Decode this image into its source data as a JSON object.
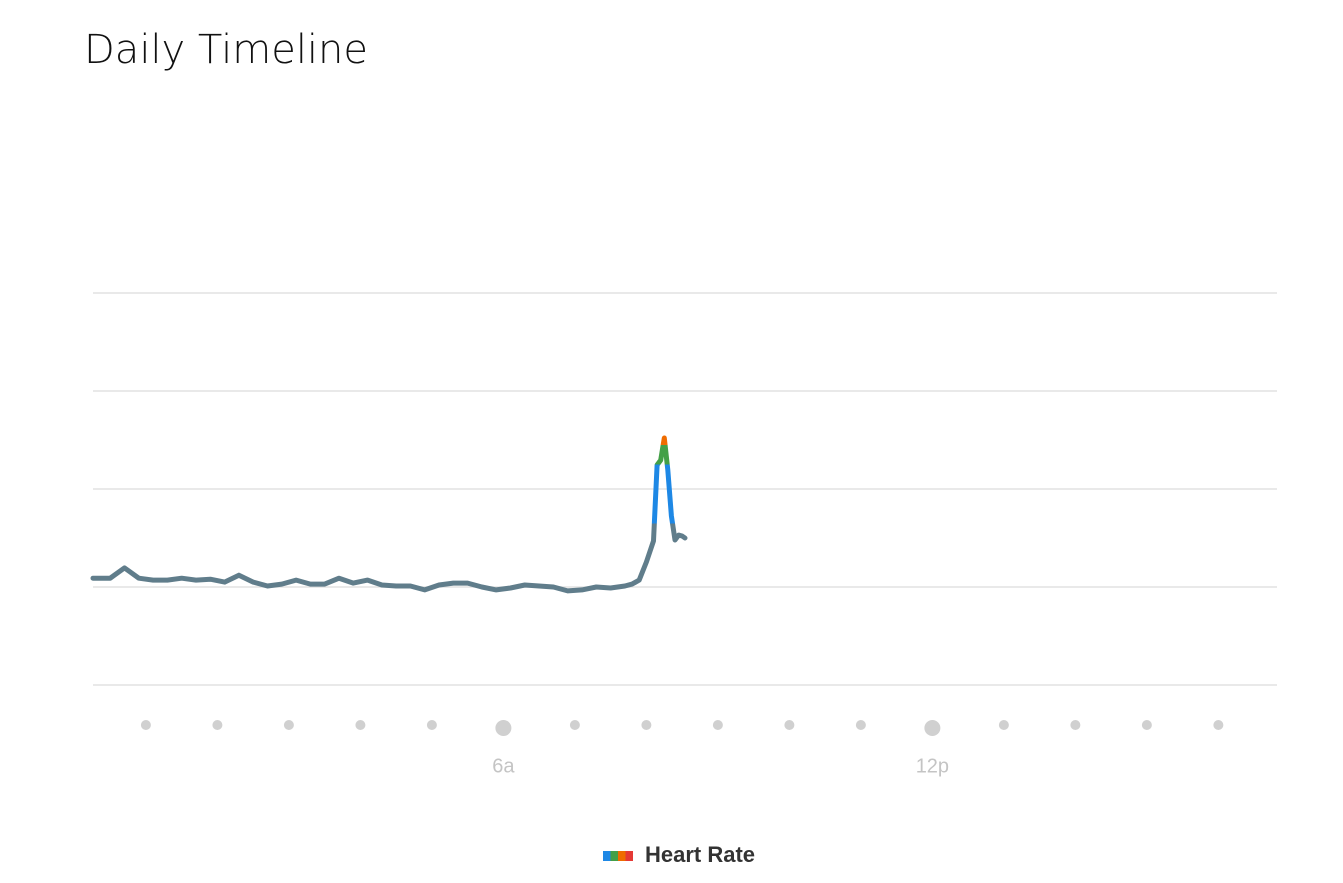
{
  "chart_data": {
    "type": "line",
    "title": "Daily Timeline",
    "xlim": [
      0.26,
      16.82
    ],
    "xticks": [
      {
        "value": 6,
        "label": "6a"
      },
      {
        "value": 12,
        "label": "12p"
      }
    ],
    "xminor": [
      1,
      2,
      3,
      4,
      5,
      7,
      8,
      9,
      10,
      11,
      13,
      14,
      15,
      16
    ],
    "ylim": [
      40,
      120
    ],
    "ygrid": [
      40,
      60,
      80,
      100,
      120
    ],
    "grid": true,
    "series": [
      {
        "name": "Heart Rate",
        "color": "#607d8b",
        "zones": [
          {
            "min": 73,
            "color": "#1e88e5"
          },
          {
            "min": 85,
            "color": "#43a047"
          },
          {
            "min": 89,
            "color": "#ef6c00"
          },
          {
            "min": 100,
            "color": "#e53935"
          }
        ],
        "x": [
          0.26,
          0.3,
          0.5,
          0.7,
          0.9,
          1.1,
          1.3,
          1.5,
          1.7,
          1.9,
          2.1,
          2.3,
          2.5,
          2.7,
          2.9,
          3.1,
          3.3,
          3.5,
          3.7,
          3.9,
          4.1,
          4.3,
          4.5,
          4.7,
          4.9,
          5.1,
          5.3,
          5.5,
          5.7,
          5.9,
          6.1,
          6.3,
          6.5,
          6.7,
          6.9,
          7.1,
          7.3,
          7.5,
          7.7,
          7.8,
          7.9,
          8.0,
          8.1,
          8.15,
          8.2,
          8.25,
          8.3,
          8.35,
          8.4,
          8.45,
          8.5,
          8.54
        ],
        "values": [
          61.8,
          61.8,
          61.8,
          63.9,
          61.8,
          61.4,
          61.4,
          61.8,
          61.4,
          61.6,
          61.0,
          62.4,
          61.0,
          60.2,
          60.6,
          61.4,
          60.6,
          60.6,
          61.8,
          60.8,
          61.4,
          60.4,
          60.2,
          60.2,
          59.4,
          60.4,
          60.8,
          60.8,
          60.0,
          59.4,
          59.8,
          60.4,
          60.2,
          60.0,
          59.2,
          59.4,
          60.0,
          59.8,
          60.2,
          60.6,
          61.4,
          65.1,
          69.4,
          84.9,
          85.9,
          90.4,
          83.9,
          74.5,
          69.6,
          70.6,
          70.4,
          70.0
        ]
      }
    ]
  }
}
